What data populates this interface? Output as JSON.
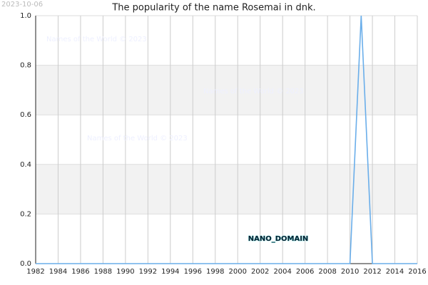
{
  "chart_data": {
    "type": "line",
    "title": "The popularity of the name Rosemai in dnk.",
    "date": "2023-10-06",
    "watermark": "Names of the World © 2023",
    "annotation": "NANO_DOMAIN",
    "x": [
      1982,
      1983,
      1984,
      1985,
      1986,
      1987,
      1988,
      1989,
      1990,
      1991,
      1992,
      1993,
      1994,
      1995,
      1996,
      1997,
      1998,
      1999,
      2000,
      2001,
      2002,
      2003,
      2004,
      2005,
      2006,
      2007,
      2008,
      2009,
      2010,
      2011,
      2012,
      2013,
      2014,
      2015,
      2016
    ],
    "series": [
      {
        "color": "#6aaeea",
        "values": [
          0,
          0,
          0,
          0,
          0,
          0,
          0,
          0,
          0,
          0,
          0,
          0,
          0,
          0,
          0,
          0,
          0,
          0,
          0,
          0,
          0,
          0,
          0,
          0,
          0,
          0,
          0,
          0,
          0,
          1,
          0,
          0,
          0,
          0,
          0
        ]
      }
    ],
    "xlim": [
      1982,
      2016
    ],
    "xticks": [
      1982,
      1984,
      1986,
      1988,
      1990,
      1992,
      1994,
      1996,
      1998,
      2000,
      2002,
      2004,
      2006,
      2008,
      2010,
      2012,
      2014,
      2016
    ],
    "ylim": [
      0,
      1
    ],
    "yticks": [
      {
        "value": 0,
        "label": "0.0"
      },
      0.2,
      0.4,
      0.6,
      0.8,
      {
        "value": 1,
        "label": "1.0"
      }
    ],
    "grid": true
  }
}
